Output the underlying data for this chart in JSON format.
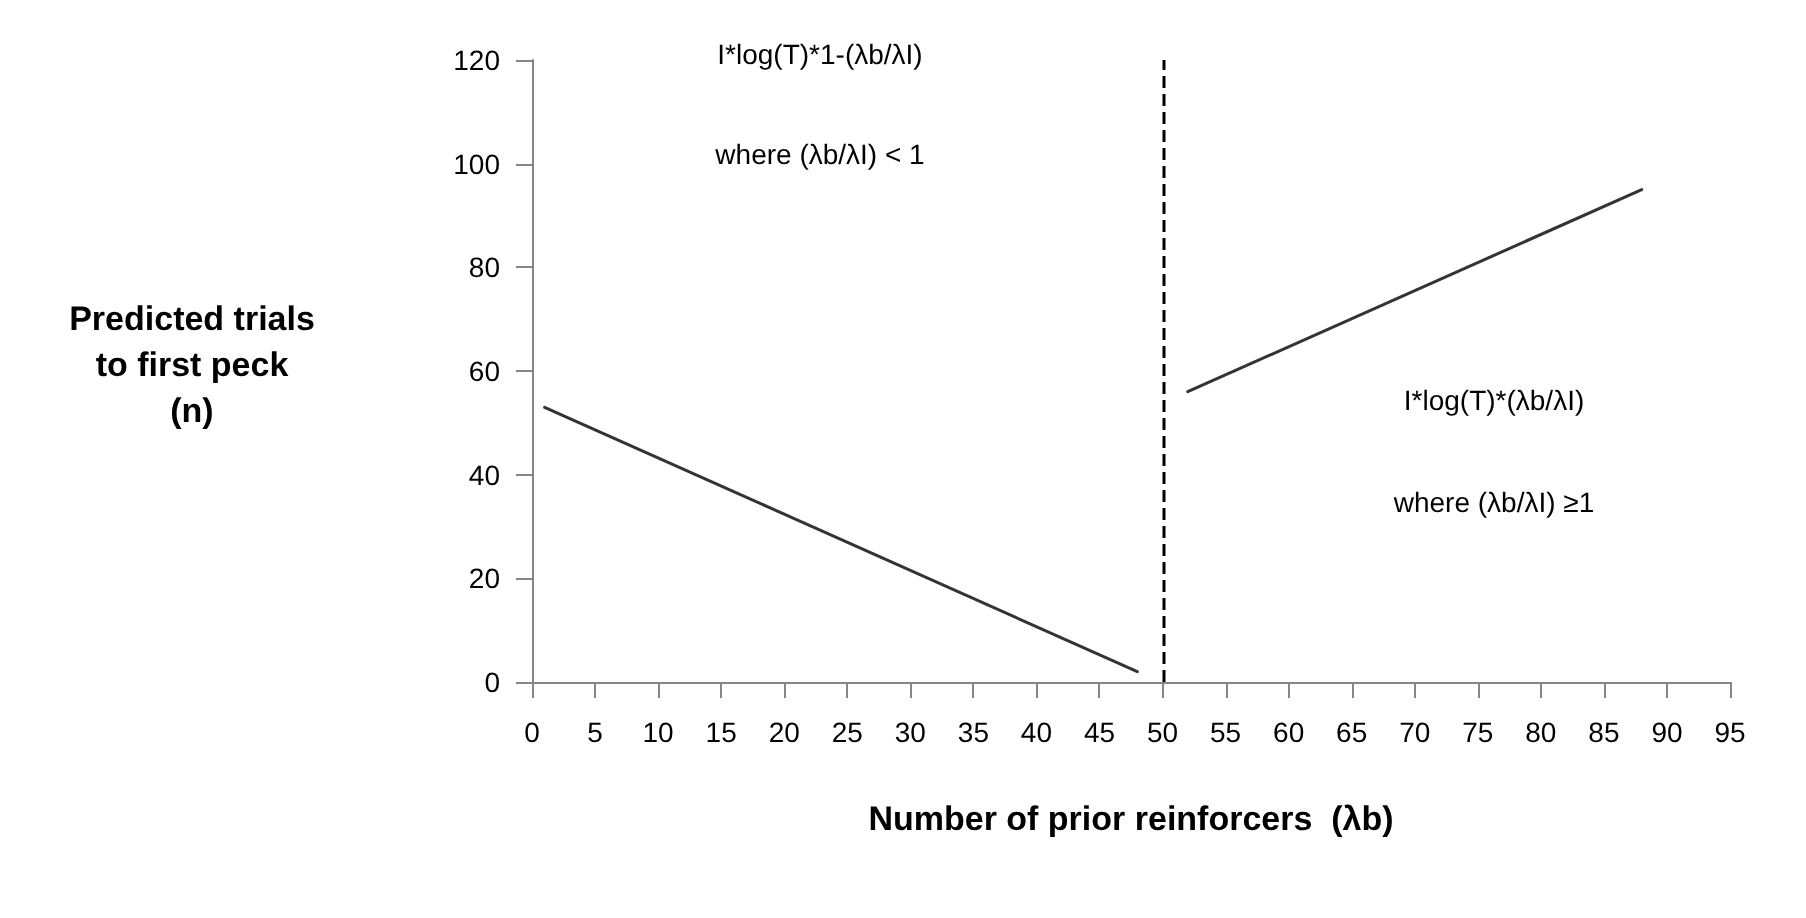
{
  "chart_data": {
    "type": "line",
    "xlabel": "Number of prior reinforcers  (λb)",
    "ylabel": "Predicted trials to first peck (n)",
    "xlim": [
      0,
      95
    ],
    "xticks": [
      0,
      5,
      10,
      15,
      20,
      25,
      30,
      35,
      40,
      45,
      50,
      55,
      60,
      65,
      70,
      75,
      80,
      85,
      90,
      95
    ],
    "ylim": [
      0,
      120
    ],
    "yticks": [
      0,
      20,
      40,
      60,
      80,
      100,
      120
    ],
    "series": [
      {
        "color": "#333333",
        "x": [
          1,
          48
        ],
        "values": [
          53,
          2
        ]
      },
      {
        "color": "#333333",
        "x": [
          52,
          88
        ],
        "values": [
          56,
          95
        ]
      }
    ],
    "ref_lines": [
      {
        "axis": "x",
        "value": 50,
        "color": "#000000",
        "line_style": "dashed"
      }
    ],
    "annotations": [
      "I*log(T)*1-(λb/λI)",
      "where (λb/λI) < 1",
      "I*log(T)*(λb/λI)",
      "where (λb/λI) ≥1"
    ],
    "grid": false,
    "marker": "none",
    "line_style": "solid"
  }
}
